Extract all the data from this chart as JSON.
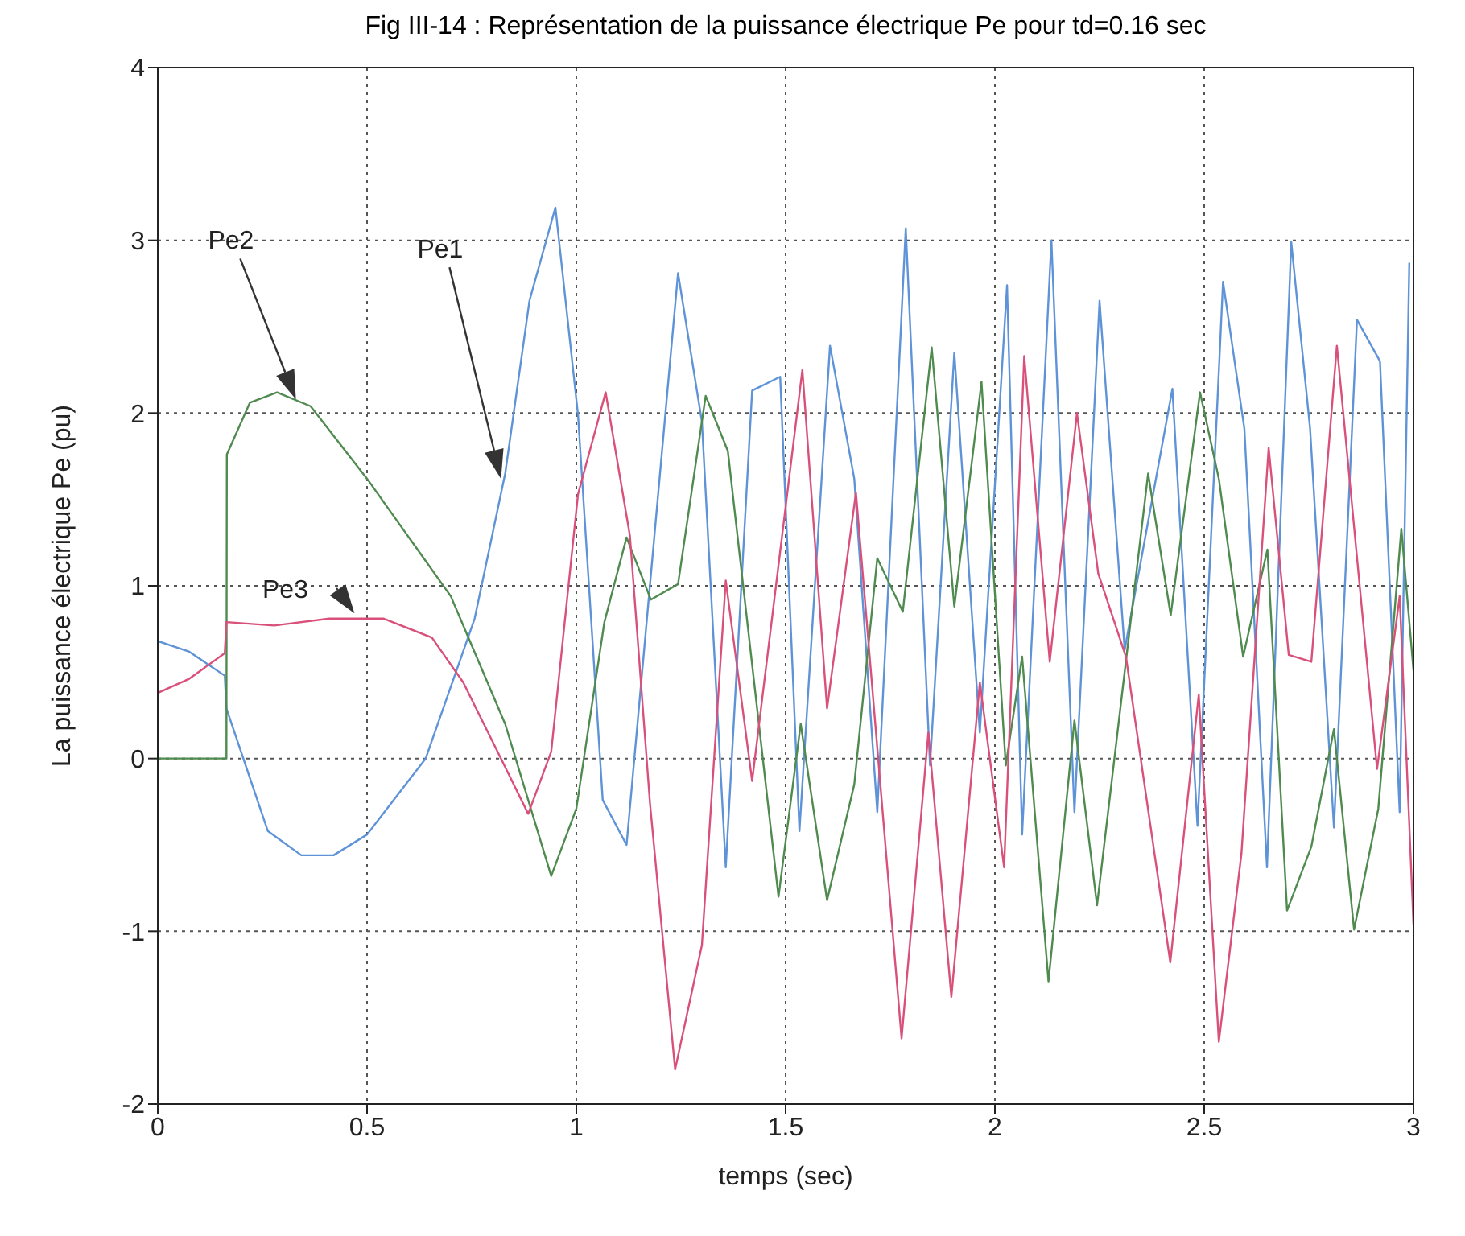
{
  "chart_data": {
    "type": "line",
    "title": "Fig III-14 : Représentation de la puissance électrique Pe pour td=0.16 sec",
    "xlabel": "temps (sec)",
    "ylabel": "La puissance électrique Pe (pu)",
    "xlim": [
      0,
      3
    ],
    "xticks": [
      0,
      0.5,
      1,
      1.5,
      2,
      2.5,
      3
    ],
    "ylim": [
      -2,
      4
    ],
    "yticks": [
      -2,
      -1,
      0,
      1,
      2,
      3,
      4
    ],
    "grid": true,
    "legend": false,
    "marker": "none",
    "line_style": "solid",
    "series": [
      {
        "name": "Pe1",
        "color": "#5f93d8",
        "x": [
          0,
          0.074,
          0.16,
          0.164,
          0.263,
          0.343,
          0.42,
          0.5,
          0.64,
          0.757,
          0.83,
          0.888,
          0.95,
          1.004,
          1.063,
          1.12,
          1.243,
          1.3,
          1.357,
          1.42,
          1.487,
          1.533,
          1.606,
          1.664,
          1.719,
          1.787,
          1.845,
          1.903,
          1.964,
          2.029,
          2.065,
          2.135,
          2.19,
          2.25,
          2.31,
          2.424,
          2.484,
          2.545,
          2.596,
          2.65,
          2.708,
          2.753,
          2.81,
          2.865,
          2.92,
          2.967,
          2.99
        ],
        "values": [
          0.68,
          0.62,
          0.48,
          0.29,
          -0.42,
          -0.56,
          -0.56,
          -0.44,
          0,
          0.81,
          1.65,
          2.65,
          3.19,
          1.99,
          -0.24,
          -0.5,
          2.81,
          1.95,
          -0.63,
          2.13,
          2.21,
          -0.42,
          2.39,
          1.62,
          -0.31,
          3.07,
          -0.04,
          2.35,
          0.15,
          2.74,
          -0.44,
          3.0,
          -0.31,
          2.65,
          0.63,
          2.14,
          -0.39,
          2.76,
          1.91,
          -0.63,
          2.99,
          1.91,
          -0.4,
          2.54,
          2.3,
          -0.31,
          2.87
        ]
      },
      {
        "name": "Pe2",
        "color": "#4f8a4f",
        "x": [
          0,
          0.164,
          0.165,
          0.22,
          0.285,
          0.365,
          0.5,
          0.7,
          0.83,
          0.94,
          1.0,
          1.067,
          1.12,
          1.178,
          1.243,
          1.309,
          1.362,
          1.483,
          1.536,
          1.599,
          1.664,
          1.719,
          1.78,
          1.849,
          1.903,
          1.968,
          2.026,
          2.065,
          2.128,
          2.19,
          2.244,
          2.366,
          2.42,
          2.49,
          2.535,
          2.593,
          2.651,
          2.698,
          2.756,
          2.81,
          2.858,
          2.916,
          2.971,
          3.0
        ],
        "values": [
          0,
          0,
          1.76,
          2.06,
          2.12,
          2.04,
          1.62,
          0.94,
          0.2,
          -0.68,
          -0.29,
          0.79,
          1.28,
          0.92,
          1.01,
          2.1,
          1.78,
          -0.8,
          0.2,
          -0.82,
          -0.15,
          1.16,
          0.85,
          2.38,
          0.88,
          2.18,
          -0.04,
          0.59,
          -1.29,
          0.22,
          -0.85,
          1.65,
          0.83,
          2.12,
          1.62,
          0.59,
          1.21,
          -0.88,
          -0.51,
          0.17,
          -0.99,
          -0.29,
          1.33,
          0.51
        ]
      },
      {
        "name": "Pe3",
        "color": "#d9507a",
        "x": [
          0,
          0.074,
          0.16,
          0.164,
          0.278,
          0.41,
          0.54,
          0.655,
          0.73,
          0.82,
          0.885,
          0.94,
          1.004,
          1.07,
          1.128,
          1.176,
          1.236,
          1.3,
          1.357,
          1.42,
          1.54,
          1.599,
          1.668,
          1.777,
          1.841,
          1.896,
          1.964,
          2.022,
          2.07,
          2.131,
          2.196,
          2.247,
          2.313,
          2.419,
          2.487,
          2.535,
          2.589,
          2.654,
          2.702,
          2.756,
          2.817,
          2.913,
          2.967,
          3.0
        ],
        "values": [
          0.38,
          0.46,
          0.61,
          0.79,
          0.77,
          0.81,
          0.81,
          0.7,
          0.44,
          0,
          -0.32,
          0.04,
          1.53,
          2.12,
          1.29,
          -0.26,
          -1.8,
          -1.08,
          1.03,
          -0.13,
          2.25,
          0.29,
          1.54,
          -1.62,
          0.15,
          -1.38,
          0.44,
          -0.63,
          2.33,
          0.56,
          2.0,
          1.07,
          0.59,
          -1.18,
          0.37,
          -1.64,
          -0.55,
          1.8,
          0.6,
          0.56,
          2.39,
          -0.06,
          0.94,
          -0.96
        ]
      }
    ]
  }
}
